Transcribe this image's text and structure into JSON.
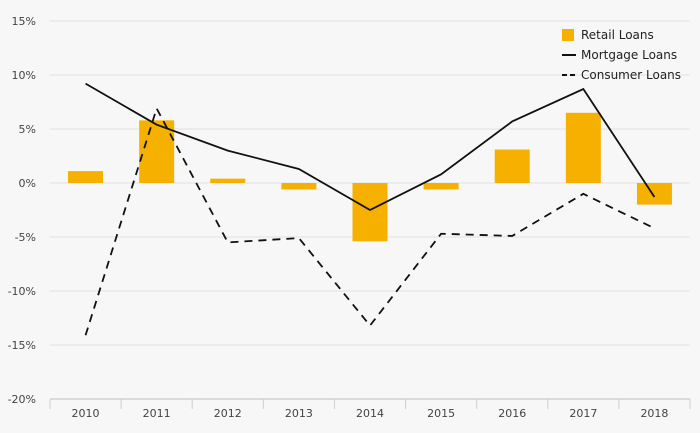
{
  "chart_data": {
    "type": "bar",
    "title": "",
    "xlabel": "",
    "ylabel": "",
    "categories": [
      "2010",
      "2011",
      "2012",
      "2013",
      "2014",
      "2015",
      "2016",
      "2017",
      "2018"
    ],
    "ylim": [
      -20,
      15
    ],
    "yticks": [
      15,
      10,
      5,
      0,
      -5,
      -10,
      -15,
      -20
    ],
    "ytick_labels": [
      "15%",
      "10%",
      "5%",
      "0%",
      "-5%",
      "-10%",
      "-15%",
      "-20%"
    ],
    "grid": true,
    "legend_position": "top-right",
    "series": [
      {
        "name": "Retail Loans",
        "type": "bar",
        "color": "#f5b000",
        "values": [
          1.1,
          5.8,
          0.4,
          -0.6,
          -5.4,
          -0.6,
          3.1,
          6.5,
          -2.0
        ]
      },
      {
        "name": "Mortgage Loans",
        "type": "line",
        "style": "solid",
        "color": "#111111",
        "values": [
          9.2,
          5.4,
          3.0,
          1.3,
          -2.5,
          0.8,
          5.7,
          8.7,
          -1.3
        ]
      },
      {
        "name": "Consumer Loans",
        "type": "line",
        "style": "dashed",
        "color": "#111111",
        "values": [
          -14.1,
          6.9,
          -5.5,
          -5.1,
          -13.2,
          -4.7,
          -4.9,
          -1.0,
          -4.2
        ]
      }
    ]
  }
}
